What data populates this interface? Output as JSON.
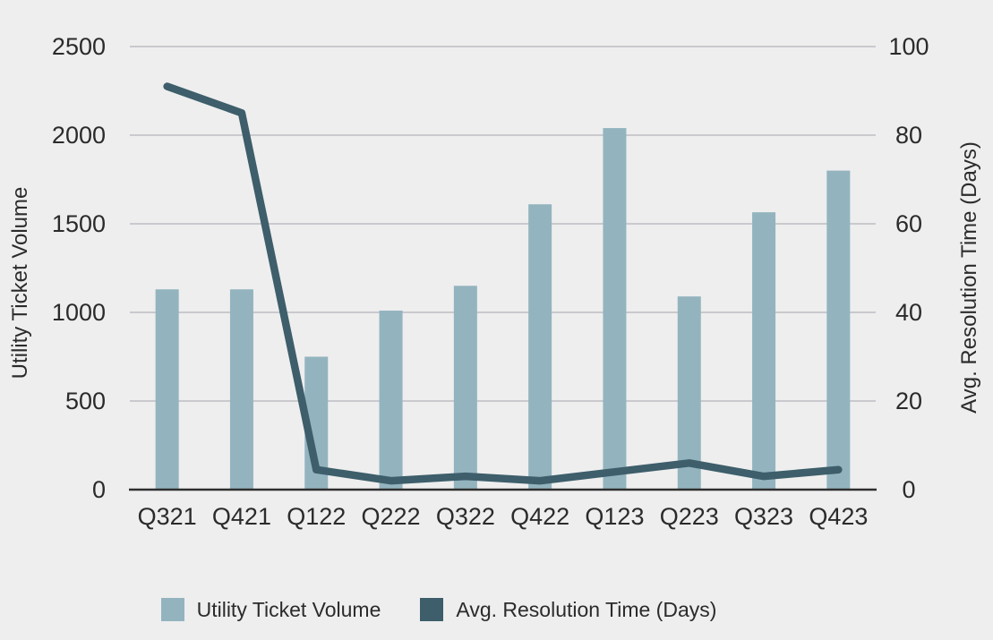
{
  "chart_data": {
    "type": "bar+line combo",
    "categories": [
      "Q321",
      "Q421",
      "Q122",
      "Q222",
      "Q322",
      "Q422",
      "Q123",
      "Q223",
      "Q323",
      "Q423"
    ],
    "series": [
      {
        "name": "Utility Ticket Volume",
        "type": "bar",
        "axis": "left",
        "color": "#93b4bf",
        "values": [
          1130,
          1130,
          750,
          1010,
          1150,
          1610,
          2040,
          1090,
          1565,
          1800
        ]
      },
      {
        "name": "Avg. Resolution Time (Days)",
        "type": "line",
        "axis": "right",
        "color": "#3d5e6a",
        "values": [
          91,
          85,
          4.5,
          2,
          3,
          2,
          4,
          6,
          3,
          4.5
        ]
      }
    ],
    "left_axis": {
      "label": "Utility Ticket Volume",
      "min": 0,
      "max": 2500,
      "ticks": [
        0,
        500,
        1000,
        1500,
        2000,
        2500
      ]
    },
    "right_axis": {
      "label": "Avg. Resolution Time (Days)",
      "min": 0,
      "max": 100,
      "ticks": [
        0,
        20,
        40,
        60,
        80,
        100
      ]
    },
    "grid": true,
    "legend_position": "bottom",
    "colors": {
      "background": "#eeeeee",
      "gridline": "#b3b3ba",
      "axis_line": "#2f2f2f",
      "text": "#2b2b2b"
    }
  }
}
